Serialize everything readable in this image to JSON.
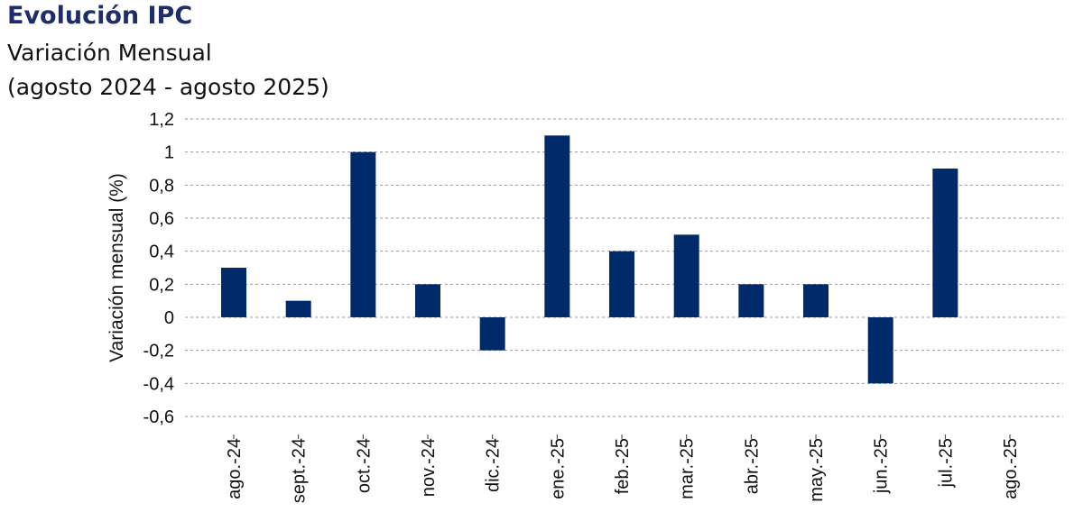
{
  "chart_data": {
    "type": "bar",
    "title": "Evolución IPC",
    "subtitle": "Variación Mensual",
    "period": "(agosto 2024 - agosto 2025)",
    "ylabel": "Variación mensual (%)",
    "xlabel": "",
    "categories": [
      "ago.-24",
      "sept.-24",
      "oct.-24",
      "nov.-24",
      "dic.-24",
      "ene.-25",
      "feb.-25",
      "mar.-25",
      "abr.-25",
      "may.-25",
      "jun.-25",
      "jul.-25",
      "ago.-25"
    ],
    "values": [
      0.3,
      0.1,
      1.0,
      0.2,
      -0.2,
      1.1,
      0.4,
      0.5,
      0.2,
      0.2,
      -0.4,
      0.9,
      null
    ],
    "ylim": [
      -0.6,
      1.2
    ],
    "yticks": [
      -0.6,
      -0.4,
      -0.2,
      0,
      0.2,
      0.4,
      0.6,
      0.8,
      1,
      1.2
    ],
    "ytick_labels": [
      "-0,6",
      "-0,4",
      "-0,2",
      "0",
      "0,2",
      "0,4",
      "0,6",
      "0,8",
      "1",
      "1,2"
    ],
    "grid": true,
    "legend": false,
    "colors": {
      "bar": "#012a6b",
      "title": "#1f2d6b",
      "grid": "#9a9a9a"
    }
  }
}
